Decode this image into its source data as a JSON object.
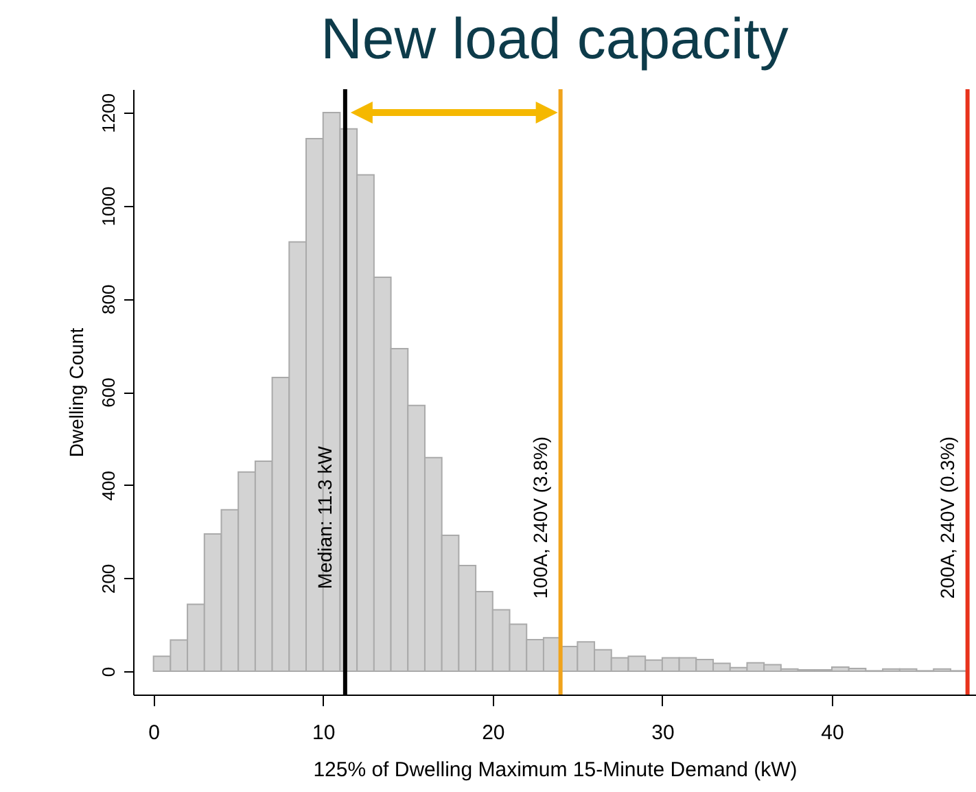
{
  "chart_data": {
    "type": "histogram",
    "title": "New load capacity",
    "xlabel": "125% of Dwelling Maximum 15-Minute Demand (kW)",
    "ylabel": "Dwelling Count",
    "bins": [
      0,
      1,
      2,
      3,
      4,
      5,
      6,
      7,
      8,
      9,
      10,
      11,
      12,
      13,
      14,
      15,
      16,
      17,
      18,
      19,
      20,
      21,
      22,
      23,
      24,
      25,
      26,
      27,
      28,
      29,
      30,
      31,
      32,
      33,
      34,
      35,
      36,
      37,
      38,
      39,
      40,
      41,
      42,
      43,
      44,
      45,
      46,
      47,
      48
    ],
    "values": [
      32,
      67,
      144,
      295,
      347,
      428,
      451,
      631,
      922,
      1144,
      1200,
      1165,
      1066,
      846,
      693,
      571,
      459,
      292,
      227,
      171,
      132,
      101,
      68,
      72,
      53,
      63,
      46,
      29,
      32,
      24,
      29,
      29,
      25,
      17,
      8,
      18,
      14,
      5,
      3,
      3,
      9,
      6,
      1,
      5,
      5,
      1,
      5,
      1
    ],
    "color": "#d3d3d3",
    "xlim": [
      -1.2,
      48.5
    ],
    "ylim": [
      -50,
      1250
    ],
    "xticks": [
      0,
      10,
      20,
      30,
      40
    ],
    "yticks": [
      0,
      200,
      400,
      600,
      800,
      1000,
      1200
    ],
    "grid": false,
    "ref_lines": [
      {
        "axis": "x",
        "value": 11.3,
        "label": "Median: 11.3 kW",
        "color": "#000000"
      },
      {
        "axis": "x",
        "value": 24,
        "label": "100A, 240V (3.8%)",
        "color": "#f0a31c"
      },
      {
        "axis": "x",
        "value": 48,
        "label": "200A, 240V (0.3%)",
        "color": "#e8331c"
      }
    ]
  }
}
